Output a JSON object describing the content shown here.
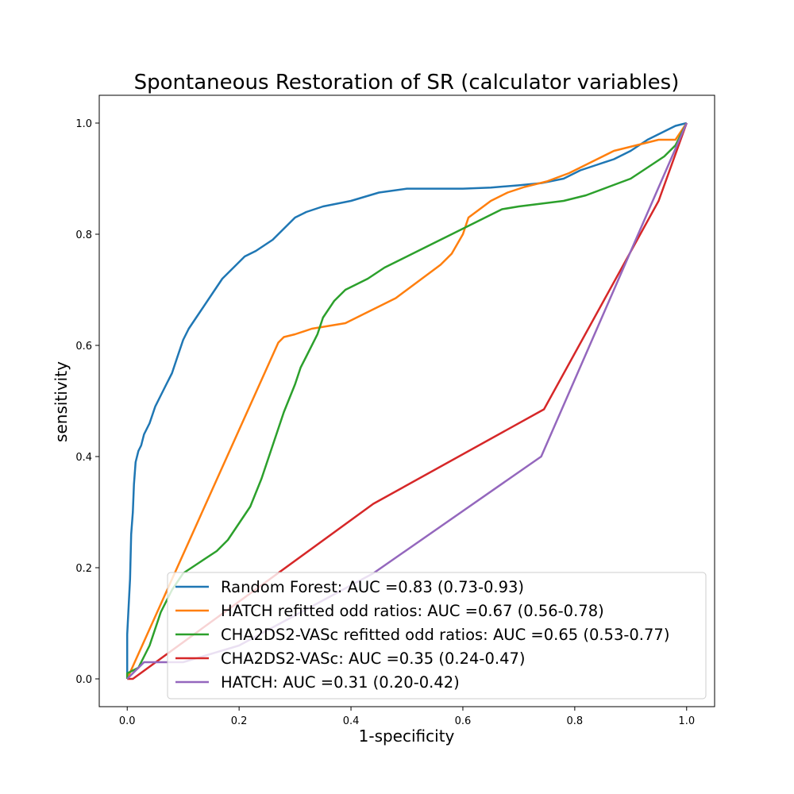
{
  "chart_data": {
    "type": "line",
    "title": "Spontaneous Restoration of SR (calculator variables)",
    "xlabel": "1-specificity",
    "ylabel": "sensitivity",
    "xlim": [
      -0.05,
      1.05
    ],
    "ylim": [
      -0.05,
      1.05
    ],
    "xticks": [
      0.0,
      0.2,
      0.4,
      0.6,
      0.8,
      1.0
    ],
    "xtick_labels": [
      "0.0",
      "0.2",
      "0.4",
      "0.6",
      "0.8",
      "1.0"
    ],
    "yticks": [
      0.0,
      0.2,
      0.4,
      0.6,
      0.8,
      1.0
    ],
    "ytick_labels": [
      "0.0",
      "0.2",
      "0.4",
      "0.6",
      "0.8",
      "1.0"
    ],
    "grid": false,
    "legend_position": "lower-right",
    "series": [
      {
        "name": "Random Forest: AUC =0.83 (0.73-0.93)",
        "color": "#1f77b4",
        "x": [
          0.0,
          0.0,
          0.005,
          0.007,
          0.01,
          0.012,
          0.015,
          0.02,
          0.025,
          0.03,
          0.04,
          0.05,
          0.06,
          0.07,
          0.08,
          0.09,
          0.1,
          0.11,
          0.13,
          0.15,
          0.17,
          0.19,
          0.21,
          0.23,
          0.26,
          0.28,
          0.3,
          0.32,
          0.35,
          0.4,
          0.45,
          0.5,
          0.55,
          0.6,
          0.65,
          0.7,
          0.74,
          0.78,
          0.81,
          0.84,
          0.87,
          0.9,
          0.93,
          0.96,
          0.98,
          1.0
        ],
        "y": [
          0.0,
          0.08,
          0.18,
          0.26,
          0.3,
          0.35,
          0.39,
          0.41,
          0.42,
          0.44,
          0.46,
          0.49,
          0.51,
          0.53,
          0.55,
          0.58,
          0.61,
          0.63,
          0.66,
          0.69,
          0.72,
          0.74,
          0.76,
          0.77,
          0.79,
          0.81,
          0.83,
          0.84,
          0.85,
          0.86,
          0.875,
          0.882,
          0.882,
          0.882,
          0.884,
          0.888,
          0.892,
          0.9,
          0.915,
          0.925,
          0.935,
          0.95,
          0.97,
          0.985,
          0.995,
          1.0
        ]
      },
      {
        "name": "HATCH refitted odd ratios: AUC =0.67 (0.56-0.78)",
        "color": "#ff7f0e",
        "x": [
          0.0,
          0.27,
          0.28,
          0.3,
          0.33,
          0.36,
          0.39,
          0.42,
          0.45,
          0.48,
          0.5,
          0.52,
          0.54,
          0.56,
          0.58,
          0.6,
          0.61,
          0.63,
          0.65,
          0.68,
          0.71,
          0.75,
          0.79,
          0.83,
          0.87,
          0.91,
          0.95,
          0.98,
          1.0
        ],
        "y": [
          0.0,
          0.605,
          0.615,
          0.62,
          0.63,
          0.635,
          0.64,
          0.655,
          0.67,
          0.685,
          0.7,
          0.715,
          0.73,
          0.745,
          0.765,
          0.8,
          0.83,
          0.845,
          0.86,
          0.875,
          0.885,
          0.895,
          0.91,
          0.93,
          0.95,
          0.96,
          0.97,
          0.97,
          1.0
        ]
      },
      {
        "name": "CHA2DS2-VASc refitted odd ratios: AUC =0.65 (0.53-0.77)",
        "color": "#2ca02c",
        "x": [
          0.0,
          0.0,
          0.02,
          0.04,
          0.06,
          0.08,
          0.1,
          0.13,
          0.16,
          0.18,
          0.2,
          0.22,
          0.24,
          0.26,
          0.28,
          0.3,
          0.31,
          0.32,
          0.34,
          0.35,
          0.37,
          0.39,
          0.41,
          0.43,
          0.46,
          0.49,
          0.52,
          0.55,
          0.58,
          0.61,
          0.64,
          0.67,
          0.7,
          0.74,
          0.78,
          0.82,
          0.86,
          0.9,
          0.93,
          0.96,
          0.98,
          1.0
        ],
        "y": [
          0.0,
          0.01,
          0.02,
          0.06,
          0.12,
          0.16,
          0.19,
          0.21,
          0.23,
          0.25,
          0.28,
          0.31,
          0.36,
          0.42,
          0.48,
          0.53,
          0.56,
          0.58,
          0.62,
          0.65,
          0.68,
          0.7,
          0.71,
          0.72,
          0.74,
          0.755,
          0.77,
          0.785,
          0.8,
          0.815,
          0.83,
          0.845,
          0.85,
          0.855,
          0.86,
          0.87,
          0.885,
          0.9,
          0.92,
          0.94,
          0.96,
          1.0
        ]
      },
      {
        "name": "CHA2DS2-VASc: AUC =0.35 (0.24-0.47)",
        "color": "#d62728",
        "x": [
          0.0,
          0.01,
          0.44,
          0.745,
          0.95,
          1.0
        ],
        "y": [
          0.0,
          0.0,
          0.315,
          0.485,
          0.86,
          1.0
        ]
      },
      {
        "name": "HATCH: AUC =0.31 (0.20-0.42)",
        "color": "#9467bd",
        "x": [
          0.0,
          0.03,
          0.1,
          0.2,
          0.44,
          0.74,
          1.0
        ],
        "y": [
          0.0,
          0.03,
          0.03,
          0.06,
          0.19,
          0.4,
          1.0
        ]
      }
    ]
  }
}
